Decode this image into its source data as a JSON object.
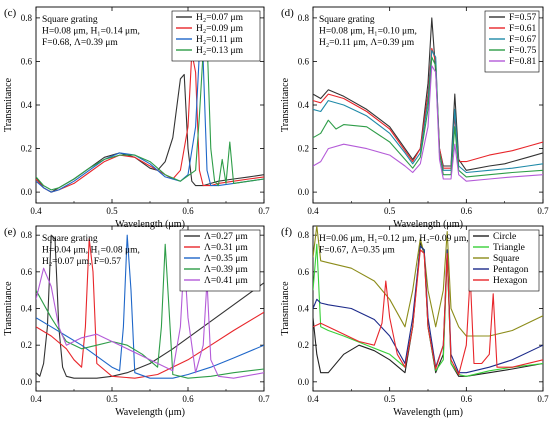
{
  "chart_data": [
    {
      "type": "line",
      "panel_label": "(c)",
      "xlabel": "Wavelength (μm)",
      "ylabel": "Transmitance",
      "xlim": [
        0.4,
        0.7
      ],
      "ylim": [
        -0.05,
        0.85
      ],
      "xticks": [
        "0.4",
        "0.5",
        "0.6",
        "0.7"
      ],
      "yticks": [
        "0.0",
        "0.2",
        "0.4",
        "0.6",
        "0.8"
      ],
      "annotations": [
        "Square grating",
        "H=0.08 μm, H₁=0.14 μm,",
        "F=0.68, Λ=0.39 μm"
      ],
      "legend_position": "top-right",
      "series": [
        {
          "name": "H₂=0.07 μm",
          "color": "#333333",
          "x": [
            0.4,
            0.41,
            0.42,
            0.43,
            0.45,
            0.47,
            0.49,
            0.51,
            0.53,
            0.55,
            0.56,
            0.57,
            0.58,
            0.59,
            0.595,
            0.6,
            0.605,
            0.61,
            0.62,
            0.63,
            0.64,
            0.66,
            0.68,
            0.7
          ],
          "y": [
            0.07,
            0.02,
            0.0,
            0.02,
            0.06,
            0.11,
            0.16,
            0.18,
            0.16,
            0.11,
            0.1,
            0.14,
            0.25,
            0.52,
            0.54,
            0.2,
            0.05,
            0.03,
            0.03,
            0.04,
            0.05,
            0.06,
            0.07,
            0.08
          ]
        },
        {
          "name": "H₂=0.09 μm",
          "color": "#e8262b",
          "x": [
            0.4,
            0.41,
            0.42,
            0.43,
            0.45,
            0.47,
            0.49,
            0.51,
            0.53,
            0.55,
            0.57,
            0.58,
            0.59,
            0.6,
            0.605,
            0.61,
            0.615,
            0.62,
            0.63,
            0.64,
            0.66,
            0.68,
            0.7
          ],
          "y": [
            0.06,
            0.02,
            0.0,
            0.01,
            0.04,
            0.09,
            0.14,
            0.17,
            0.16,
            0.12,
            0.08,
            0.06,
            0.1,
            0.3,
            0.64,
            0.55,
            0.1,
            0.03,
            0.03,
            0.04,
            0.05,
            0.06,
            0.07
          ]
        },
        {
          "name": "H₂=0.11 μm",
          "color": "#1f67c9",
          "x": [
            0.4,
            0.41,
            0.42,
            0.43,
            0.45,
            0.47,
            0.49,
            0.51,
            0.53,
            0.55,
            0.57,
            0.59,
            0.6,
            0.61,
            0.615,
            0.62,
            0.625,
            0.63,
            0.64,
            0.66,
            0.68,
            0.7
          ],
          "y": [
            0.05,
            0.02,
            0.0,
            0.01,
            0.05,
            0.1,
            0.15,
            0.18,
            0.17,
            0.13,
            0.07,
            0.05,
            0.08,
            0.3,
            0.64,
            0.6,
            0.1,
            0.03,
            0.03,
            0.04,
            0.05,
            0.06
          ]
        },
        {
          "name": "H₂=0.13 μm",
          "color": "#2e9d48",
          "x": [
            0.4,
            0.41,
            0.42,
            0.43,
            0.45,
            0.47,
            0.49,
            0.51,
            0.53,
            0.55,
            0.57,
            0.59,
            0.61,
            0.615,
            0.62,
            0.625,
            0.63,
            0.635,
            0.64,
            0.645,
            0.65,
            0.655,
            0.66,
            0.68,
            0.7
          ],
          "y": [
            0.07,
            0.03,
            0.01,
            0.02,
            0.06,
            0.11,
            0.15,
            0.17,
            0.17,
            0.14,
            0.08,
            0.05,
            0.1,
            0.35,
            0.65,
            0.71,
            0.2,
            0.05,
            0.03,
            0.15,
            0.04,
            0.23,
            0.04,
            0.05,
            0.06
          ]
        }
      ]
    },
    {
      "type": "line",
      "panel_label": "(d)",
      "xlabel": "Wavelength (μm)",
      "ylabel": "Transmitance",
      "xlim": [
        0.4,
        0.7
      ],
      "ylim": [
        -0.05,
        0.85
      ],
      "xticks": [
        "0.4",
        "0.5",
        "0.6",
        "0.7"
      ],
      "yticks": [
        "0.0",
        "0.2",
        "0.4",
        "0.6",
        "0.8"
      ],
      "annotations": [
        "Square grating",
        "H=0.08 μm, H₁=0.10 μm,",
        "H₂=0.11 μm, Λ=0.39 μm"
      ],
      "legend_position": "top-right",
      "series": [
        {
          "name": "F=0.57",
          "color": "#333333",
          "x": [
            0.4,
            0.41,
            0.42,
            0.44,
            0.47,
            0.5,
            0.52,
            0.53,
            0.54,
            0.55,
            0.555,
            0.56,
            0.565,
            0.57,
            0.58,
            0.585,
            0.59,
            0.6,
            0.63,
            0.65,
            0.66,
            0.68,
            0.7
          ],
          "y": [
            0.45,
            0.43,
            0.47,
            0.44,
            0.38,
            0.3,
            0.2,
            0.15,
            0.2,
            0.5,
            0.8,
            0.55,
            0.2,
            0.12,
            0.12,
            0.45,
            0.15,
            0.1,
            0.12,
            0.13,
            0.14,
            0.16,
            0.18
          ]
        },
        {
          "name": "F=0.61",
          "color": "#e8262b",
          "x": [
            0.4,
            0.41,
            0.42,
            0.44,
            0.47,
            0.5,
            0.52,
            0.53,
            0.54,
            0.55,
            0.555,
            0.56,
            0.565,
            0.57,
            0.58,
            0.585,
            0.59,
            0.6,
            0.63,
            0.66,
            0.68,
            0.7
          ],
          "y": [
            0.42,
            0.41,
            0.45,
            0.43,
            0.37,
            0.29,
            0.19,
            0.14,
            0.2,
            0.45,
            0.66,
            0.6,
            0.2,
            0.11,
            0.11,
            0.35,
            0.14,
            0.14,
            0.17,
            0.19,
            0.21,
            0.23
          ]
        },
        {
          "name": "F=0.67",
          "color": "#1f8aa8",
          "x": [
            0.4,
            0.41,
            0.42,
            0.44,
            0.47,
            0.5,
            0.52,
            0.53,
            0.54,
            0.55,
            0.555,
            0.56,
            0.565,
            0.57,
            0.58,
            0.585,
            0.59,
            0.6,
            0.63,
            0.66,
            0.68,
            0.7
          ],
          "y": [
            0.38,
            0.37,
            0.42,
            0.4,
            0.35,
            0.27,
            0.18,
            0.13,
            0.18,
            0.42,
            0.65,
            0.62,
            0.18,
            0.1,
            0.1,
            0.38,
            0.12,
            0.09,
            0.1,
            0.11,
            0.12,
            0.13
          ]
        },
        {
          "name": "F=0.75",
          "color": "#2e9d48",
          "x": [
            0.4,
            0.41,
            0.42,
            0.43,
            0.44,
            0.47,
            0.5,
            0.52,
            0.53,
            0.54,
            0.55,
            0.555,
            0.56,
            0.565,
            0.57,
            0.58,
            0.585,
            0.59,
            0.6,
            0.63,
            0.66,
            0.7
          ],
          "y": [
            0.25,
            0.27,
            0.33,
            0.29,
            0.31,
            0.3,
            0.23,
            0.15,
            0.11,
            0.16,
            0.38,
            0.62,
            0.58,
            0.18,
            0.08,
            0.08,
            0.3,
            0.1,
            0.07,
            0.08,
            0.09,
            0.1
          ]
        },
        {
          "name": "F=0.81",
          "color": "#b45bd8",
          "x": [
            0.4,
            0.41,
            0.42,
            0.44,
            0.47,
            0.5,
            0.52,
            0.53,
            0.54,
            0.55,
            0.555,
            0.56,
            0.565,
            0.57,
            0.58,
            0.585,
            0.59,
            0.6,
            0.63,
            0.66,
            0.7
          ],
          "y": [
            0.12,
            0.14,
            0.2,
            0.22,
            0.2,
            0.17,
            0.12,
            0.09,
            0.13,
            0.3,
            0.58,
            0.55,
            0.15,
            0.06,
            0.06,
            0.22,
            0.08,
            0.05,
            0.06,
            0.07,
            0.08
          ]
        }
      ]
    },
    {
      "type": "line",
      "panel_label": "(e)",
      "xlabel": "Wavelength (μm)",
      "ylabel": "Transmitance",
      "xlim": [
        0.4,
        0.7
      ],
      "ylim": [
        -0.05,
        0.85
      ],
      "xticks": [
        "0.4",
        "0.5",
        "0.6",
        "0.7"
      ],
      "yticks": [
        "0.0",
        "0.2",
        "0.4",
        "0.6",
        "0.8"
      ],
      "annotations": [
        "Square grating",
        "H=0.04 μm, H₁=0.08 μm,",
        "H₂=0.07 μm, F=0.57"
      ],
      "legend_position": "top-right",
      "series": [
        {
          "name": "Λ=0.27 μm",
          "color": "#333333",
          "x": [
            0.4,
            0.405,
            0.41,
            0.415,
            0.42,
            0.425,
            0.43,
            0.435,
            0.44,
            0.45,
            0.46,
            0.48,
            0.5,
            0.52,
            0.55,
            0.58,
            0.6,
            0.63,
            0.66,
            0.7
          ],
          "y": [
            0.05,
            0.03,
            0.1,
            0.3,
            0.8,
            0.78,
            0.3,
            0.08,
            0.03,
            0.02,
            0.02,
            0.02,
            0.03,
            0.05,
            0.1,
            0.18,
            0.24,
            0.33,
            0.42,
            0.54
          ]
        },
        {
          "name": "Λ=0.31 μm",
          "color": "#e8262b",
          "x": [
            0.4,
            0.42,
            0.44,
            0.45,
            0.46,
            0.465,
            0.47,
            0.475,
            0.48,
            0.5,
            0.53,
            0.56,
            0.6,
            0.63,
            0.66,
            0.7
          ],
          "y": [
            0.3,
            0.25,
            0.18,
            0.12,
            0.08,
            0.3,
            0.78,
            0.6,
            0.1,
            0.03,
            0.02,
            0.04,
            0.12,
            0.2,
            0.28,
            0.38
          ]
        },
        {
          "name": "Λ=0.35 μm",
          "color": "#1f67c9",
          "x": [
            0.4,
            0.42,
            0.44,
            0.46,
            0.48,
            0.5,
            0.51,
            0.515,
            0.52,
            0.525,
            0.53,
            0.55,
            0.58,
            0.6,
            0.63,
            0.66,
            0.7
          ],
          "y": [
            0.35,
            0.3,
            0.25,
            0.2,
            0.14,
            0.08,
            0.06,
            0.3,
            0.8,
            0.5,
            0.05,
            0.02,
            0.02,
            0.04,
            0.08,
            0.13,
            0.2
          ]
        },
        {
          "name": "Λ=0.39 μm",
          "color": "#2e9d48",
          "x": [
            0.4,
            0.42,
            0.44,
            0.46,
            0.48,
            0.5,
            0.52,
            0.54,
            0.56,
            0.565,
            0.57,
            0.575,
            0.58,
            0.6,
            0.63,
            0.66,
            0.7
          ],
          "y": [
            0.5,
            0.35,
            0.22,
            0.18,
            0.2,
            0.22,
            0.2,
            0.15,
            0.08,
            0.3,
            0.75,
            0.4,
            0.04,
            0.02,
            0.03,
            0.05,
            0.07
          ]
        },
        {
          "name": "Λ=0.41 μm",
          "color": "#b45bd8",
          "x": [
            0.4,
            0.41,
            0.42,
            0.43,
            0.44,
            0.46,
            0.48,
            0.5,
            0.52,
            0.55,
            0.58,
            0.59,
            0.595,
            0.6,
            0.61,
            0.62,
            0.625,
            0.63,
            0.64,
            0.66,
            0.7
          ],
          "y": [
            0.45,
            0.62,
            0.52,
            0.3,
            0.2,
            0.24,
            0.26,
            0.22,
            0.18,
            0.12,
            0.06,
            0.3,
            0.68,
            0.35,
            0.05,
            0.2,
            0.55,
            0.12,
            0.03,
            0.02,
            0.05
          ]
        }
      ]
    },
    {
      "type": "line",
      "panel_label": "(f)",
      "xlabel": "Wavelength (μm)",
      "ylabel": "Transmitance",
      "xlim": [
        0.4,
        0.7
      ],
      "ylim": [
        -0.05,
        0.85
      ],
      "xticks": [
        "0.4",
        "0.5",
        "0.6",
        "0.7"
      ],
      "yticks": [
        "0.0",
        "0.2",
        "0.4",
        "0.6",
        "0.8"
      ],
      "annotations": [
        "H=0.06 μm, H₁=0.12 μm, H₂=0.09 μm,",
        "F=0.67, Λ=0.35 μm"
      ],
      "legend_position": "top-right",
      "series": [
        {
          "name": "Circle",
          "color": "#222222",
          "x": [
            0.4,
            0.405,
            0.41,
            0.42,
            0.44,
            0.46,
            0.48,
            0.5,
            0.52,
            0.53,
            0.54,
            0.545,
            0.55,
            0.56,
            0.57,
            0.575,
            0.58,
            0.59,
            0.6,
            0.63,
            0.66,
            0.7
          ],
          "y": [
            0.35,
            0.15,
            0.05,
            0.05,
            0.15,
            0.2,
            0.17,
            0.12,
            0.05,
            0.3,
            0.76,
            0.7,
            0.3,
            0.05,
            0.15,
            0.7,
            0.1,
            0.03,
            0.03,
            0.05,
            0.07,
            0.1
          ]
        },
        {
          "name": "Triangle",
          "color": "#38d038",
          "x": [
            0.4,
            0.405,
            0.41,
            0.42,
            0.44,
            0.47,
            0.5,
            0.52,
            0.53,
            0.54,
            0.545,
            0.55,
            0.56,
            0.57,
            0.575,
            0.58,
            0.59,
            0.6,
            0.63,
            0.66,
            0.7
          ],
          "y": [
            0.5,
            0.75,
            0.3,
            0.28,
            0.25,
            0.2,
            0.15,
            0.08,
            0.3,
            0.74,
            0.72,
            0.3,
            0.06,
            0.12,
            0.7,
            0.1,
            0.04,
            0.03,
            0.06,
            0.08,
            0.1
          ]
        },
        {
          "name": "Square",
          "color": "#8c8c1a",
          "x": [
            0.4,
            0.405,
            0.41,
            0.42,
            0.45,
            0.48,
            0.5,
            0.52,
            0.53,
            0.54,
            0.545,
            0.55,
            0.56,
            0.57,
            0.575,
            0.58,
            0.59,
            0.6,
            0.63,
            0.66,
            0.7
          ],
          "y": [
            0.68,
            0.85,
            0.66,
            0.65,
            0.62,
            0.55,
            0.45,
            0.3,
            0.5,
            0.78,
            0.7,
            0.5,
            0.3,
            0.5,
            0.82,
            0.4,
            0.3,
            0.25,
            0.25,
            0.28,
            0.36
          ]
        },
        {
          "name": "Pentagon",
          "color": "#1c2a8a",
          "x": [
            0.4,
            0.405,
            0.41,
            0.42,
            0.45,
            0.48,
            0.5,
            0.52,
            0.53,
            0.54,
            0.545,
            0.55,
            0.56,
            0.57,
            0.575,
            0.58,
            0.59,
            0.6,
            0.63,
            0.66,
            0.7
          ],
          "y": [
            0.4,
            0.45,
            0.43,
            0.42,
            0.4,
            0.34,
            0.25,
            0.1,
            0.35,
            0.74,
            0.72,
            0.35,
            0.08,
            0.2,
            0.72,
            0.15,
            0.05,
            0.05,
            0.08,
            0.12,
            0.2
          ]
        },
        {
          "name": "Hexagon",
          "color": "#e8262b",
          "x": [
            0.4,
            0.41,
            0.43,
            0.46,
            0.48,
            0.49,
            0.495,
            0.5,
            0.51,
            0.52,
            0.53,
            0.54,
            0.545,
            0.55,
            0.56,
            0.57,
            0.575,
            0.58,
            0.59,
            0.6,
            0.605,
            0.61,
            0.62,
            0.63,
            0.635,
            0.64,
            0.66,
            0.7
          ],
          "y": [
            0.3,
            0.32,
            0.28,
            0.22,
            0.2,
            0.32,
            0.55,
            0.35,
            0.15,
            0.08,
            0.3,
            0.72,
            0.7,
            0.3,
            0.07,
            0.2,
            0.7,
            0.12,
            0.04,
            0.2,
            0.58,
            0.1,
            0.1,
            0.15,
            0.48,
            0.08,
            0.08,
            0.12
          ]
        }
      ]
    }
  ]
}
